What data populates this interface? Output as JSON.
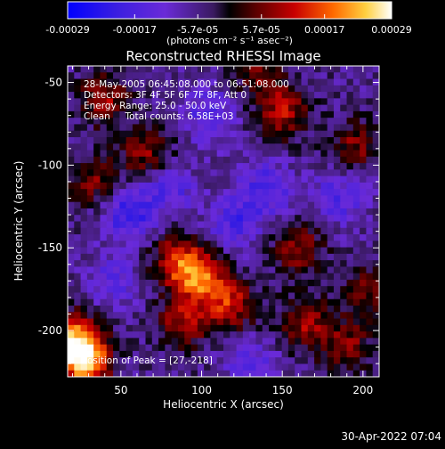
{
  "chart_data": {
    "type": "heatmap",
    "title": "Reconstructed RHESSI Image",
    "xlabel": "Heliocentric X (arcsec)",
    "ylabel": "Heliocentric Y (arcsec)",
    "xlim": [
      17,
      210
    ],
    "ylim": [
      -228,
      -40
    ],
    "xticks": [
      50,
      100,
      150,
      200
    ],
    "yticks": [
      -50,
      -100,
      -150,
      -200
    ],
    "colorbar": {
      "unit_line": "(photons cm⁻² s⁻¹ asec⁻²)",
      "tick_labels": [
        "-0.00029",
        "-0.00017",
        "-5.7e-05",
        "5.7e-05",
        "0.00017",
        "0.00029"
      ],
      "tick_values": [
        -0.00029,
        -0.00017,
        -5.7e-05,
        5.7e-05,
        0.00017,
        0.00029
      ],
      "range": [
        -0.00029,
        0.00029
      ]
    },
    "annotations": [
      "28-May-2005 06:45:08.000 to 06:51:08.000",
      "Detectors: 3F 4F 5F 6F 7F 8F, Att 0",
      "Energy Range: 25.0 - 50.0 keV",
      "Clean     Total counts: 6.58E+03"
    ],
    "peak_label": "Position of Peak = [27,-218]",
    "peak": [
      27,
      -218
    ],
    "bright_regions": [
      {
        "x": 27,
        "y": -218,
        "value": 0.00029
      },
      {
        "x": 22,
        "y": -205,
        "value": 0.00022
      },
      {
        "x": 40,
        "y": -60,
        "value": 0.00014
      },
      {
        "x": 65,
        "y": -92,
        "value": 0.00013
      },
      {
        "x": 32,
        "y": -110,
        "value": 0.00012
      },
      {
        "x": 85,
        "y": -158,
        "value": 0.00018
      },
      {
        "x": 100,
        "y": -168,
        "value": 0.00022
      },
      {
        "x": 118,
        "y": -185,
        "value": 0.00017
      },
      {
        "x": 88,
        "y": -195,
        "value": 0.00015
      },
      {
        "x": 150,
        "y": -68,
        "value": 0.00016
      },
      {
        "x": 195,
        "y": -88,
        "value": 0.00012
      },
      {
        "x": 160,
        "y": -150,
        "value": 0.00014
      },
      {
        "x": 165,
        "y": -195,
        "value": 0.00015
      },
      {
        "x": 190,
        "y": -210,
        "value": 0.00013
      },
      {
        "x": 135,
        "y": -45,
        "value": 0.0001
      },
      {
        "x": 205,
        "y": -175,
        "value": 0.00011
      }
    ],
    "dark_regions": [
      {
        "x": 105,
        "y": -70,
        "value": -0.00012
      },
      {
        "x": 55,
        "y": -130,
        "value": -0.00015
      },
      {
        "x": 140,
        "y": -115,
        "value": -0.00013
      },
      {
        "x": 120,
        "y": -135,
        "value": -0.00012
      },
      {
        "x": 80,
        "y": -115,
        "value": -0.0001
      },
      {
        "x": 185,
        "y": -120,
        "value": -0.00011
      },
      {
        "x": 45,
        "y": -170,
        "value": -0.0001
      },
      {
        "x": 130,
        "y": -220,
        "value": -9e-05
      }
    ]
  },
  "footer": {
    "timestamp": "30-Apr-2022 07:04"
  }
}
